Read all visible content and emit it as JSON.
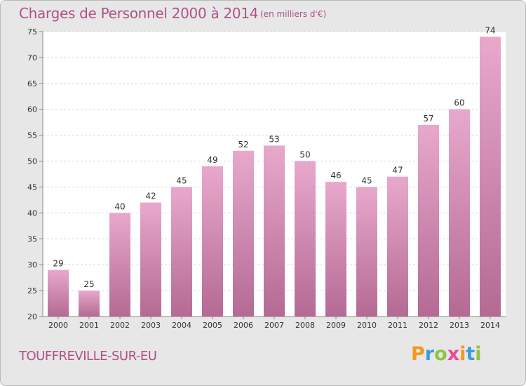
{
  "header": {
    "title": "Charges de Personnel 2000 à 2014",
    "unit": "(en milliers d'€)"
  },
  "footer": {
    "commune": "TOUFFREVILLE-SUR-EU",
    "logo_text": "Proxiti"
  },
  "colors": {
    "bar_top": "#e8a8cc",
    "bar_bottom": "#b46a93",
    "title": "#b0508a",
    "background": "#e7e7e7",
    "plot_background": "#ffffff"
  },
  "chart_data": {
    "type": "bar",
    "categories": [
      "2000",
      "2001",
      "2002",
      "2003",
      "2004",
      "2005",
      "2006",
      "2007",
      "2008",
      "2009",
      "2010",
      "2011",
      "2012",
      "2013",
      "2014"
    ],
    "values": [
      29,
      25,
      40,
      42,
      45,
      49,
      52,
      53,
      50,
      46,
      45,
      47,
      57,
      60,
      74
    ],
    "title": "Charges de Personnel 2000 à 2014",
    "ylim": [
      20,
      75
    ],
    "yticks": [
      20,
      25,
      30,
      35,
      40,
      45,
      50,
      55,
      60,
      65,
      70,
      75
    ],
    "grid": true,
    "data_labels": true
  }
}
